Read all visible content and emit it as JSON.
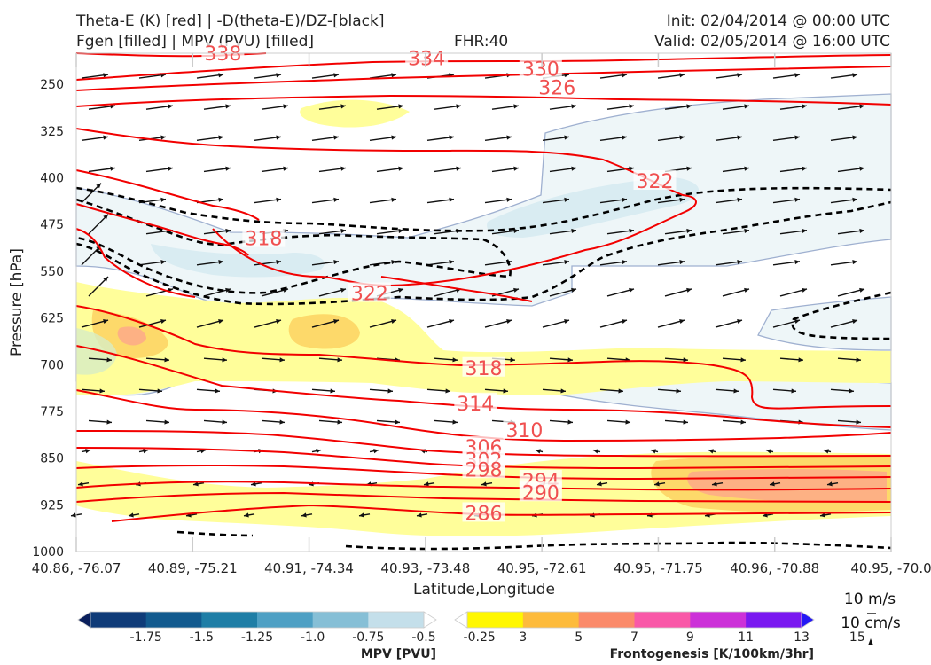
{
  "header": {
    "title_line1": "Theta-E (K) [red] | -D(theta-E)/DZ-[black]",
    "title_line2": "Fgen [filled] | MPV (PVU) [filled]",
    "fhr": "FHR:40",
    "init": "Init: 02/04/2014 @ 00:00 UTC",
    "valid": "Valid: 02/05/2014 @ 16:00 UTC"
  },
  "chart_data": {
    "type": "cross-section",
    "xlabel": "Latitude,Longitude",
    "ylabel": "Pressure [hPa]",
    "x_ticks": [
      "40.86, -76.07",
      "40.89, -75.21",
      "40.91, -74.34",
      "40.93, -73.48",
      "40.95, -72.61",
      "40.95, -71.75",
      "40.96, -70.88",
      "40.95, -70.0"
    ],
    "y_ticks": [
      250,
      325,
      400,
      475,
      550,
      625,
      700,
      775,
      850,
      925,
      1000
    ],
    "ylim": [
      1000,
      200
    ],
    "theta_e_labels": [
      {
        "label": "338",
        "x": 0.18,
        "p": 200
      },
      {
        "label": "334",
        "x": 0.43,
        "p": 208
      },
      {
        "label": "330",
        "x": 0.57,
        "p": 225
      },
      {
        "label": "326",
        "x": 0.59,
        "p": 255
      },
      {
        "label": "322",
        "x": 0.71,
        "p": 405
      },
      {
        "label": "318",
        "x": 0.23,
        "p": 497
      },
      {
        "label": "322",
        "x": 0.36,
        "p": 585
      },
      {
        "label": "318",
        "x": 0.5,
        "p": 705
      },
      {
        "label": "314",
        "x": 0.49,
        "p": 762
      },
      {
        "label": "310",
        "x": 0.55,
        "p": 805
      },
      {
        "label": "306",
        "x": 0.5,
        "p": 832
      },
      {
        "label": "302",
        "x": 0.5,
        "p": 853
      },
      {
        "label": "298",
        "x": 0.5,
        "p": 868
      },
      {
        "label": "294",
        "x": 0.57,
        "p": 886
      },
      {
        "label": "290",
        "x": 0.57,
        "p": 905
      },
      {
        "label": "286",
        "x": 0.5,
        "p": 938
      }
    ],
    "wind_reference": {
      "horizontal": "10 m/s",
      "vertical": "10 cm/s"
    },
    "colorbars": [
      {
        "label": "MPV [PVU]",
        "ticks": [
          "-1.75",
          "-1.5",
          "-1.25",
          "-1.0",
          "-0.75",
          "-0.5",
          "-0.25"
        ],
        "colors": [
          "#0a1f5c",
          "#0f3b78",
          "#125a8e",
          "#1f7ea6",
          "#4ea0c4",
          "#86bfd6",
          "#c4dfea",
          "#ffffff"
        ]
      },
      {
        "label": "Frontogenesis [K/100km/3hr]",
        "ticks": [
          "3",
          "5",
          "7",
          "9",
          "11",
          "13",
          "15"
        ],
        "colors": [
          "#ffffff",
          "#fff700",
          "#fdbb3c",
          "#fb8a6a",
          "#f958a8",
          "#cc30d8",
          "#7a18f0",
          "#2418f4"
        ]
      }
    ]
  }
}
